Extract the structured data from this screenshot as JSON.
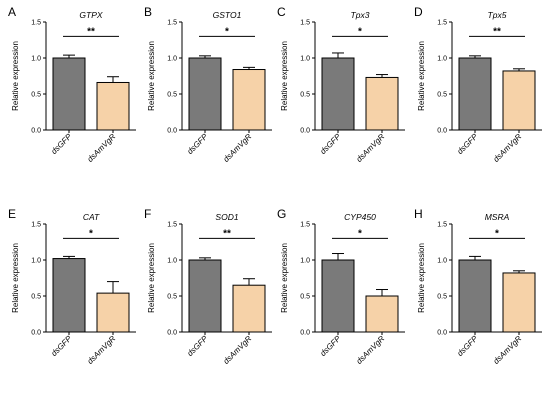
{
  "colors": {
    "control": "#7a7a7a",
    "treatment": "#f6d2a8",
    "axis": "#000000"
  },
  "chart_data": [
    {
      "type": "bar",
      "panel": "A",
      "title": "GTPX",
      "ylabel": "Relative expression",
      "categories": [
        "dsGFP",
        "dsAmVgR"
      ],
      "values": [
        1.0,
        0.66
      ],
      "errors": [
        0.04,
        0.08
      ],
      "ylim": [
        0,
        1.5
      ],
      "yticks": [
        "0.0",
        "0.5",
        "1.0",
        "1.5"
      ],
      "significance": "**"
    },
    {
      "type": "bar",
      "panel": "B",
      "title": "GSTO1",
      "ylabel": "Relative expression",
      "categories": [
        "dsGFP",
        "dsAmVgR"
      ],
      "values": [
        1.0,
        0.84
      ],
      "errors": [
        0.03,
        0.03
      ],
      "ylim": [
        0,
        1.5
      ],
      "yticks": [
        "0.0",
        "0.5",
        "1.0",
        "1.5"
      ],
      "significance": "*"
    },
    {
      "type": "bar",
      "panel": "C",
      "title": "Tpx3",
      "ylabel": "Relative expression",
      "categories": [
        "dsGFP",
        "dsAmVgR"
      ],
      "values": [
        1.0,
        0.73
      ],
      "errors": [
        0.07,
        0.04
      ],
      "ylim": [
        0,
        1.5
      ],
      "yticks": [
        "0.0",
        "0.5",
        "1.0",
        "1.5"
      ],
      "significance": "*"
    },
    {
      "type": "bar",
      "panel": "D",
      "title": "Tpx5",
      "ylabel": "Relative expression",
      "categories": [
        "dsGFP",
        "dsAmVgR"
      ],
      "values": [
        1.0,
        0.82
      ],
      "errors": [
        0.03,
        0.03
      ],
      "ylim": [
        0,
        1.5
      ],
      "yticks": [
        "0.0",
        "0.5",
        "1.0",
        "1.5"
      ],
      "significance": "**"
    },
    {
      "type": "bar",
      "panel": "E",
      "title": "CAT",
      "ylabel": "Relative expression",
      "categories": [
        "dsGFP",
        "dsAmVgR"
      ],
      "values": [
        1.02,
        0.54
      ],
      "errors": [
        0.03,
        0.16
      ],
      "ylim": [
        0,
        1.5
      ],
      "yticks": [
        "0.0",
        "0.5",
        "1.0",
        "1.5"
      ],
      "significance": "*"
    },
    {
      "type": "bar",
      "panel": "F",
      "title": "SOD1",
      "ylabel": "Relative expression",
      "categories": [
        "dsGFP",
        "dsAmVgR"
      ],
      "values": [
        1.0,
        0.65
      ],
      "errors": [
        0.03,
        0.09
      ],
      "ylim": [
        0,
        1.5
      ],
      "yticks": [
        "0.0",
        "0.5",
        "1.0",
        "1.5"
      ],
      "significance": "**"
    },
    {
      "type": "bar",
      "panel": "G",
      "title": "CYP450",
      "ylabel": "Relative expression",
      "categories": [
        "dsGFP",
        "dsAmVgR"
      ],
      "values": [
        1.0,
        0.5
      ],
      "errors": [
        0.09,
        0.09
      ],
      "ylim": [
        0,
        1.5
      ],
      "yticks": [
        "0.0",
        "0.5",
        "1.0",
        "1.5"
      ],
      "significance": "*"
    },
    {
      "type": "bar",
      "panel": "H",
      "title": "MSRA",
      "ylabel": "Relative expression",
      "categories": [
        "dsGFP",
        "dsAmVgR"
      ],
      "values": [
        1.0,
        0.82
      ],
      "errors": [
        0.05,
        0.03
      ],
      "ylim": [
        0,
        1.5
      ],
      "yticks": [
        "0.0",
        "0.5",
        "1.0",
        "1.5"
      ],
      "significance": "*"
    }
  ]
}
